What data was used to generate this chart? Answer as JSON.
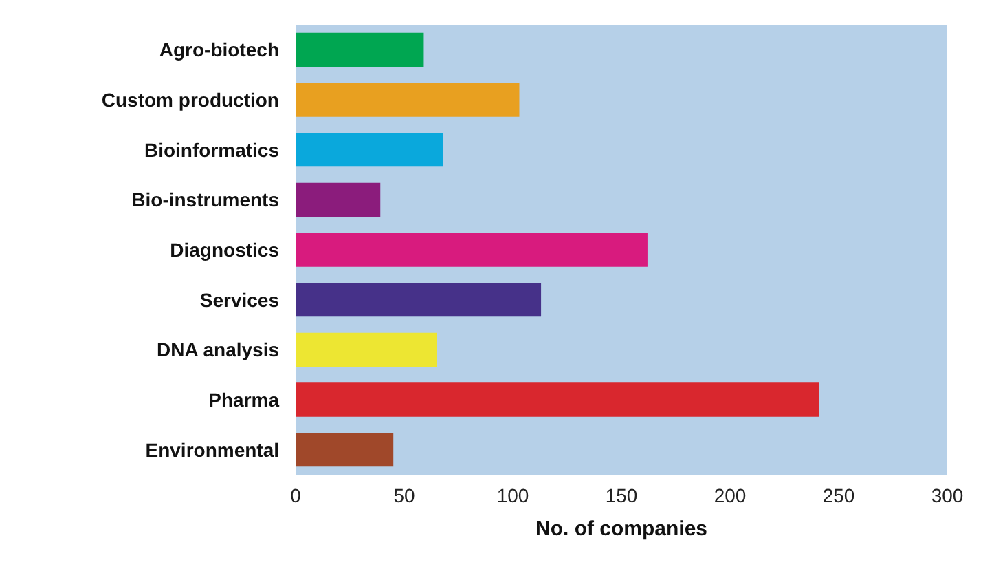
{
  "chart_data": {
    "type": "bar",
    "orientation": "horizontal",
    "xlabel": "No. of companies",
    "categories": [
      "Agro-biotech",
      "Custom production",
      "Bioinformatics",
      "Bio-instruments",
      "Diagnostics",
      "Services",
      "DNA analysis",
      "Pharma",
      "Environmental"
    ],
    "values": [
      59,
      103,
      68,
      39,
      162,
      113,
      65,
      241,
      45
    ],
    "colors": [
      "#00a651",
      "#e8a020",
      "#0aa8dc",
      "#8b1c7c",
      "#d81b7e",
      "#463189",
      "#ede632",
      "#d9272e",
      "#a0482a"
    ],
    "xlim": [
      0,
      300
    ],
    "xticks": [
      0,
      50,
      100,
      150,
      200,
      250,
      300
    ],
    "grid": false
  }
}
